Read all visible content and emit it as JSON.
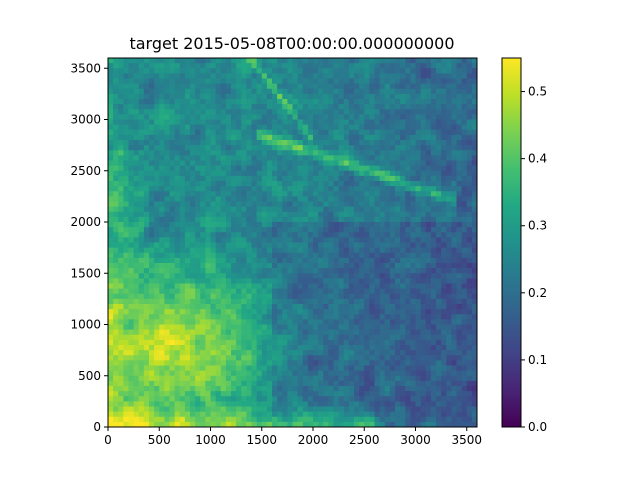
{
  "chart_data": {
    "type": "heatmap",
    "title": "target 2015-05-08T00:00:00.000000000",
    "xlabel": "",
    "ylabel": "",
    "xlim": [
      0,
      3600
    ],
    "ylim": [
      0,
      3600
    ],
    "x_ticks": [
      0,
      500,
      1000,
      1500,
      2000,
      2500,
      3000,
      3500
    ],
    "y_ticks": [
      0,
      500,
      1000,
      1500,
      2000,
      2500,
      3000,
      3500
    ],
    "colorbar": {
      "colormap": "viridis",
      "range": [
        0.0,
        0.55
      ],
      "ticks": [
        "0.0",
        "0.1",
        "0.2",
        "0.3",
        "0.4",
        "0.5"
      ],
      "tick_values": [
        0.0,
        0.1,
        0.2,
        0.3,
        0.4,
        0.5
      ]
    },
    "colors": {
      "low": "#440154",
      "mid": "#21918c",
      "high": "#fde725"
    }
  }
}
